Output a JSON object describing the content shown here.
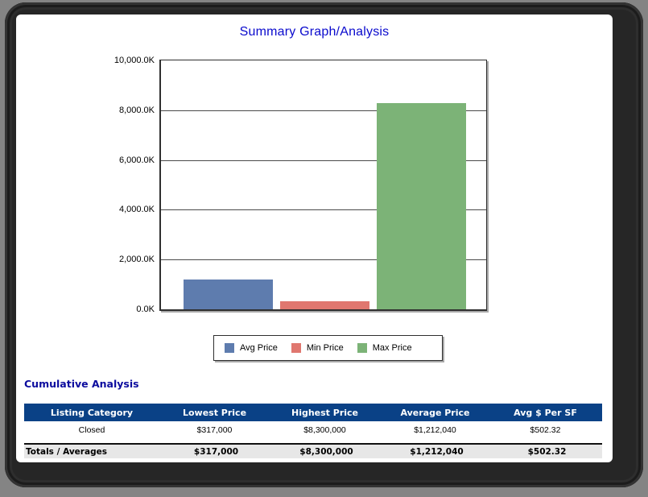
{
  "chart_data": {
    "type": "bar",
    "title": "Summary Graph/Analysis",
    "categories": [
      "Avg Price",
      "Min Price",
      "Max Price"
    ],
    "series": [
      {
        "name": "Avg Price",
        "value_dollars": 1212040,
        "value_k": 1212.04,
        "color": "#5e7cae"
      },
      {
        "name": "Min Price",
        "value_dollars": 317000,
        "value_k": 317,
        "color": "#e0776f"
      },
      {
        "name": "Max Price",
        "value_dollars": 8300000,
        "value_k": 8300,
        "color": "#7cb377"
      }
    ],
    "xlabel": "",
    "ylabel": "",
    "yunit": "K",
    "ylim": [
      0,
      10000
    ],
    "yticks": [
      {
        "value": 0,
        "label": "0.0K"
      },
      {
        "value": 2000,
        "label": "2,000.0K"
      },
      {
        "value": 4000,
        "label": "4,000.0K"
      },
      {
        "value": 6000,
        "label": "6,000.0K"
      },
      {
        "value": 8000,
        "label": "8,000.0K"
      },
      {
        "value": 10000,
        "label": "10,000.0K"
      }
    ],
    "grid": "horizontal",
    "legend_position": "bottom"
  },
  "table": {
    "heading": "Cumulative Analysis",
    "headers": [
      "Listing Category",
      "Lowest Price",
      "Highest Price",
      "Average Price",
      "Avg $ Per SF"
    ],
    "rows": [
      [
        "Closed",
        "$317,000",
        "$8,300,000",
        "$1,212,040",
        "$502.32"
      ]
    ],
    "totals": [
      "Totals / Averages",
      "$317,000",
      "$8,300,000",
      "$1,212,040",
      "$502.32"
    ],
    "header_bg": "#0a4186",
    "totals_bg": "#e7e7e7"
  },
  "colors": {
    "title_text": "#0a0acd",
    "heading_text": "#0c0c9e",
    "frame": "#262626",
    "background": "#848484"
  }
}
